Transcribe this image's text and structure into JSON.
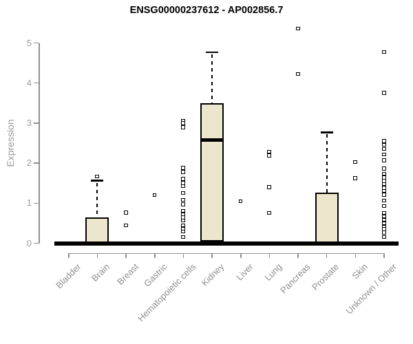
{
  "chart_data": {
    "type": "boxplot",
    "title": "ENSG00000237612 - AP002856.7",
    "ylabel": "Expression",
    "xlabel": "",
    "ylim": [
      0,
      5
    ],
    "yticks": [
      0,
      1,
      2,
      3,
      4,
      5
    ],
    "grid": false,
    "legend": "none",
    "categories": [
      "Bladder",
      "Brain",
      "Breast",
      "Gastric",
      "Hematopoietic cells",
      "Kidney",
      "Liver",
      "Lung",
      "Pancreas",
      "Prostate",
      "Skin",
      "Unknown / Other"
    ],
    "boxes": [
      {
        "category": "Bladder",
        "q1": 0,
        "median": 0,
        "q3": 0,
        "whisker_low": 0,
        "whisker_high": 0,
        "outliers": []
      },
      {
        "category": "Brain",
        "q1": 0,
        "median": 0,
        "q3": 0.65,
        "whisker_low": 0,
        "whisker_high": 1.56,
        "outliers": [
          1.66
        ]
      },
      {
        "category": "Breast",
        "q1": 0,
        "median": 0,
        "q3": 0,
        "whisker_low": 0,
        "whisker_high": 0,
        "outliers": [
          0.76,
          0.44
        ]
      },
      {
        "category": "Gastric",
        "q1": 0,
        "median": 0,
        "q3": 0,
        "whisker_low": 0,
        "whisker_high": 0,
        "outliers": [
          1.2
        ]
      },
      {
        "category": "Hematopoietic cells",
        "q1": 0,
        "median": 0,
        "q3": 0,
        "whisker_low": 0,
        "whisker_high": 0,
        "outliers": [
          3.05,
          2.99,
          2.89,
          1.88,
          1.77,
          1.6,
          1.5,
          1.42,
          1.25,
          1.08,
          0.97,
          0.8,
          0.72,
          0.64,
          0.56,
          0.44,
          0.36,
          0.29,
          0.15
        ]
      },
      {
        "category": "Kidney",
        "q1": 0.05,
        "median": 2.57,
        "q3": 3.5,
        "whisker_low": 0.05,
        "whisker_high": 4.77,
        "outliers": []
      },
      {
        "category": "Liver",
        "q1": 0,
        "median": 0,
        "q3": 0,
        "whisker_low": 0,
        "whisker_high": 0,
        "outliers": [
          1.04
        ]
      },
      {
        "category": "Lung",
        "q1": 0,
        "median": 0,
        "q3": 0,
        "whisker_low": 0,
        "whisker_high": 0,
        "outliers": [
          2.28,
          2.19,
          1.4,
          0.75
        ]
      },
      {
        "category": "Pancreas",
        "q1": 0,
        "median": 0,
        "q3": 0,
        "whisker_low": 0,
        "whisker_high": 0,
        "outliers": [
          5.36,
          4.22
        ]
      },
      {
        "category": "Prostate",
        "q1": 0,
        "median": 0,
        "q3": 1.27,
        "whisker_low": 0,
        "whisker_high": 2.77,
        "outliers": []
      },
      {
        "category": "Skin",
        "q1": 0,
        "median": 0,
        "q3": 0,
        "whisker_low": 0,
        "whisker_high": 0,
        "outliers": [
          2.02,
          1.62
        ]
      },
      {
        "category": "Unknown / Other",
        "q1": 0,
        "median": 0,
        "q3": 0,
        "whisker_low": 0,
        "whisker_high": 0,
        "outliers": [
          4.77,
          3.75,
          2.55,
          2.45,
          2.35,
          2.21,
          2.07,
          1.86,
          1.73,
          1.64,
          1.55,
          1.47,
          1.38,
          1.3,
          1.21,
          1.06,
          0.92,
          0.75,
          0.67,
          0.58,
          0.49,
          0.4,
          0.35,
          0.26,
          0.15
        ]
      }
    ],
    "colors": {
      "box_fill": "#ece6cc",
      "box_border": "#000000",
      "axis_line": "#8f8f8f",
      "tick_label": "#9a9a9a",
      "title": "#000000",
      "outlier_fill": "#ffffff"
    }
  }
}
